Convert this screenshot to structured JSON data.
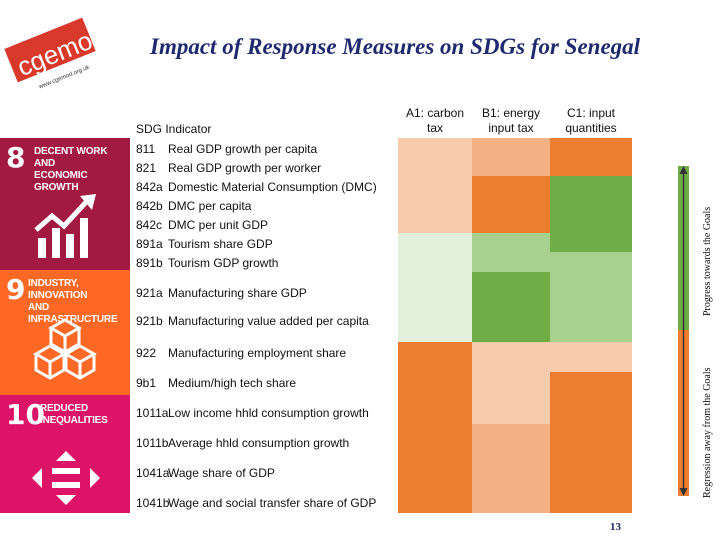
{
  "logo": {
    "text": "cgemod",
    "url_text": "www.cgemod.org.uk"
  },
  "title": "Impact of Response Measures on SDGs for Senegal",
  "columns": {
    "sdg_indicator": "SDG Indicator",
    "a1": [
      "A1: carbon",
      "tax"
    ],
    "b1": [
      "B1: energy",
      "input tax"
    ],
    "c1": [
      "C1: input",
      "quantities"
    ]
  },
  "goals": [
    {
      "number": "8",
      "name": [
        "DECENT WORK AND",
        "ECONOMIC GROWTH"
      ],
      "color": "#a21942",
      "icon": "growth-chart-icon"
    },
    {
      "number": "9",
      "name": [
        "INDUSTRY, INNOVATION",
        "AND INFRASTRUCTURE"
      ],
      "color": "#fd6925",
      "icon": "cubes-icon"
    },
    {
      "number": "10",
      "name": [
        "REDUCED",
        "INEQUALITIES"
      ],
      "color": "#dd1367",
      "icon": "equality-icon"
    }
  ],
  "indicators": [
    {
      "code": "811",
      "label": "Real GDP growth per capita"
    },
    {
      "code": "821",
      "label": "Real GDP growth per worker"
    },
    {
      "code": "842a",
      "label": "Domestic Material Consumption (DMC)"
    },
    {
      "code": "842b",
      "label": "DMC per capita"
    },
    {
      "code": "842c",
      "label": "DMC per unit GDP"
    },
    {
      "code": "891a",
      "label": "Tourism share GDP"
    },
    {
      "code": "891b",
      "label": "Tourism GDP growth"
    },
    {
      "code": "921a",
      "label": "Manufacturing share GDP"
    },
    {
      "code": "921b",
      "label": "Manufacturing value added per capita"
    },
    {
      "code": "922",
      "label": "Manufacturing employment share"
    },
    {
      "code": "9b1",
      "label": "Medium/high tech share"
    },
    {
      "code": "1011a",
      "label": "Low income hhld consumption growth"
    },
    {
      "code": "1011b",
      "label": "Average hhld consumption growth"
    },
    {
      "code": "1041a",
      "label": "Wage share of GDP"
    },
    {
      "code": "1041b",
      "label": "Wage and social transfer share of GDP"
    }
  ],
  "palette": {
    "strong_progress": "#70ad47",
    "progress": "#a9d18e",
    "slight_progress": "#e2efda",
    "slight_regression": "#f8cbad",
    "regression": "#f4b183",
    "strong_regression": "#ed7d31"
  },
  "legend": {
    "progress": "Progress towards the Goals",
    "regression": "Regression away from the Goals"
  },
  "page_number": "13"
}
